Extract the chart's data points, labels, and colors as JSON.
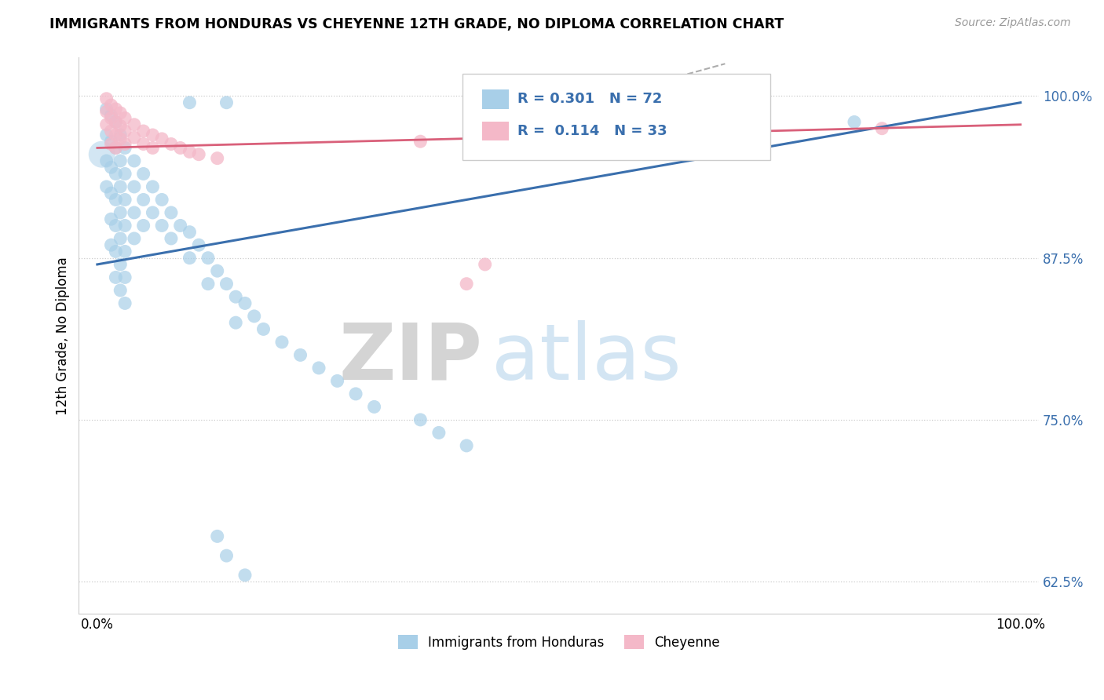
{
  "title": "IMMIGRANTS FROM HONDURAS VS CHEYENNE 12TH GRADE, NO DIPLOMA CORRELATION CHART",
  "source": "Source: ZipAtlas.com",
  "ylabel": "12th Grade, No Diploma",
  "xlim": [
    -0.02,
    1.02
  ],
  "ylim": [
    0.6,
    1.03
  ],
  "yticks": [
    0.625,
    0.75,
    0.875,
    1.0
  ],
  "ytick_labels": [
    "62.5%",
    "75.0%",
    "87.5%",
    "100.0%"
  ],
  "xticks": [
    0.0,
    1.0
  ],
  "xtick_labels": [
    "0.0%",
    "100.0%"
  ],
  "legend_blue_label": "Immigrants from Honduras",
  "legend_pink_label": "Cheyenne",
  "blue_R": "0.301",
  "blue_N": "72",
  "pink_R": "0.114",
  "pink_N": "33",
  "blue_color": "#a8cfe8",
  "pink_color": "#f4b8c8",
  "blue_line_color": "#3a6fad",
  "pink_line_color": "#d9607a",
  "watermark_zip": "ZIP",
  "watermark_atlas": "atlas",
  "blue_line_y_start": 0.87,
  "blue_line_y_end": 0.995,
  "pink_line_y_start": 0.96,
  "pink_line_y_end": 0.978,
  "dashed_line_x": [
    0.44,
    0.68
  ],
  "dashed_line_y_start": 0.978,
  "dashed_line_y_end": 1.025,
  "blue_points": [
    [
      0.01,
      0.99
    ],
    [
      0.01,
      0.97
    ],
    [
      0.01,
      0.95
    ],
    [
      0.01,
      0.93
    ],
    [
      0.015,
      0.985
    ],
    [
      0.015,
      0.965
    ],
    [
      0.015,
      0.945
    ],
    [
      0.015,
      0.925
    ],
    [
      0.015,
      0.905
    ],
    [
      0.015,
      0.885
    ],
    [
      0.02,
      0.98
    ],
    [
      0.02,
      0.96
    ],
    [
      0.02,
      0.94
    ],
    [
      0.02,
      0.92
    ],
    [
      0.02,
      0.9
    ],
    [
      0.02,
      0.88
    ],
    [
      0.02,
      0.86
    ],
    [
      0.025,
      0.97
    ],
    [
      0.025,
      0.95
    ],
    [
      0.025,
      0.93
    ],
    [
      0.025,
      0.91
    ],
    [
      0.025,
      0.89
    ],
    [
      0.025,
      0.87
    ],
    [
      0.025,
      0.85
    ],
    [
      0.03,
      0.96
    ],
    [
      0.03,
      0.94
    ],
    [
      0.03,
      0.92
    ],
    [
      0.03,
      0.9
    ],
    [
      0.03,
      0.88
    ],
    [
      0.03,
      0.86
    ],
    [
      0.03,
      0.84
    ],
    [
      0.04,
      0.95
    ],
    [
      0.04,
      0.93
    ],
    [
      0.04,
      0.91
    ],
    [
      0.04,
      0.89
    ],
    [
      0.05,
      0.94
    ],
    [
      0.05,
      0.92
    ],
    [
      0.05,
      0.9
    ],
    [
      0.06,
      0.93
    ],
    [
      0.06,
      0.91
    ],
    [
      0.07,
      0.92
    ],
    [
      0.07,
      0.9
    ],
    [
      0.08,
      0.91
    ],
    [
      0.08,
      0.89
    ],
    [
      0.09,
      0.9
    ],
    [
      0.1,
      0.895
    ],
    [
      0.1,
      0.875
    ],
    [
      0.11,
      0.885
    ],
    [
      0.12,
      0.875
    ],
    [
      0.12,
      0.855
    ],
    [
      0.13,
      0.865
    ],
    [
      0.14,
      0.855
    ],
    [
      0.15,
      0.845
    ],
    [
      0.15,
      0.825
    ],
    [
      0.16,
      0.84
    ],
    [
      0.17,
      0.83
    ],
    [
      0.18,
      0.82
    ],
    [
      0.2,
      0.81
    ],
    [
      0.22,
      0.8
    ],
    [
      0.24,
      0.79
    ],
    [
      0.26,
      0.78
    ],
    [
      0.28,
      0.77
    ],
    [
      0.3,
      0.76
    ],
    [
      0.35,
      0.75
    ],
    [
      0.37,
      0.74
    ],
    [
      0.4,
      0.73
    ],
    [
      0.13,
      0.66
    ],
    [
      0.14,
      0.645
    ],
    [
      0.16,
      0.63
    ],
    [
      0.1,
      0.995
    ],
    [
      0.14,
      0.995
    ],
    [
      0.82,
      0.98
    ]
  ],
  "pink_points": [
    [
      0.01,
      0.998
    ],
    [
      0.01,
      0.988
    ],
    [
      0.01,
      0.978
    ],
    [
      0.015,
      0.993
    ],
    [
      0.015,
      0.983
    ],
    [
      0.015,
      0.973
    ],
    [
      0.015,
      0.963
    ],
    [
      0.02,
      0.99
    ],
    [
      0.02,
      0.98
    ],
    [
      0.02,
      0.97
    ],
    [
      0.02,
      0.96
    ],
    [
      0.025,
      0.987
    ],
    [
      0.025,
      0.977
    ],
    [
      0.025,
      0.967
    ],
    [
      0.03,
      0.983
    ],
    [
      0.03,
      0.973
    ],
    [
      0.03,
      0.963
    ],
    [
      0.04,
      0.978
    ],
    [
      0.04,
      0.968
    ],
    [
      0.05,
      0.973
    ],
    [
      0.05,
      0.963
    ],
    [
      0.06,
      0.97
    ],
    [
      0.06,
      0.96
    ],
    [
      0.07,
      0.967
    ],
    [
      0.08,
      0.963
    ],
    [
      0.09,
      0.96
    ],
    [
      0.1,
      0.957
    ],
    [
      0.11,
      0.955
    ],
    [
      0.13,
      0.952
    ],
    [
      0.35,
      0.965
    ],
    [
      0.4,
      0.855
    ],
    [
      0.42,
      0.87
    ],
    [
      0.85,
      0.975
    ]
  ]
}
